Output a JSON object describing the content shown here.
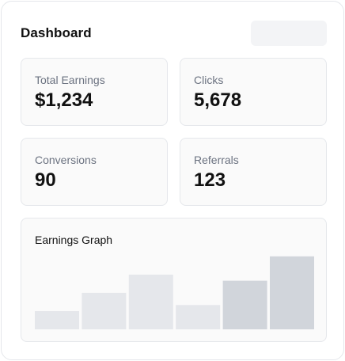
{
  "header": {
    "title": "Dashboard"
  },
  "stats": [
    {
      "label": "Total Earnings",
      "value": "$1,234"
    },
    {
      "label": "Clicks",
      "value": "5,678"
    },
    {
      "label": "Conversions",
      "value": "90"
    },
    {
      "label": "Referrals",
      "value": "123"
    }
  ],
  "graph": {
    "title": "Earnings Graph"
  },
  "chart_data": {
    "type": "bar",
    "categories": [
      "",
      "",
      "",
      "",
      "",
      ""
    ],
    "values": [
      24,
      48,
      72,
      32,
      64,
      96
    ],
    "ylim": [
      0,
      100
    ],
    "grid": false,
    "colors": [
      "#e5e7eb",
      "#e5e7eb",
      "#e5e7eb",
      "#e5e7eb",
      "#d1d5db",
      "#d1d5db"
    ]
  }
}
